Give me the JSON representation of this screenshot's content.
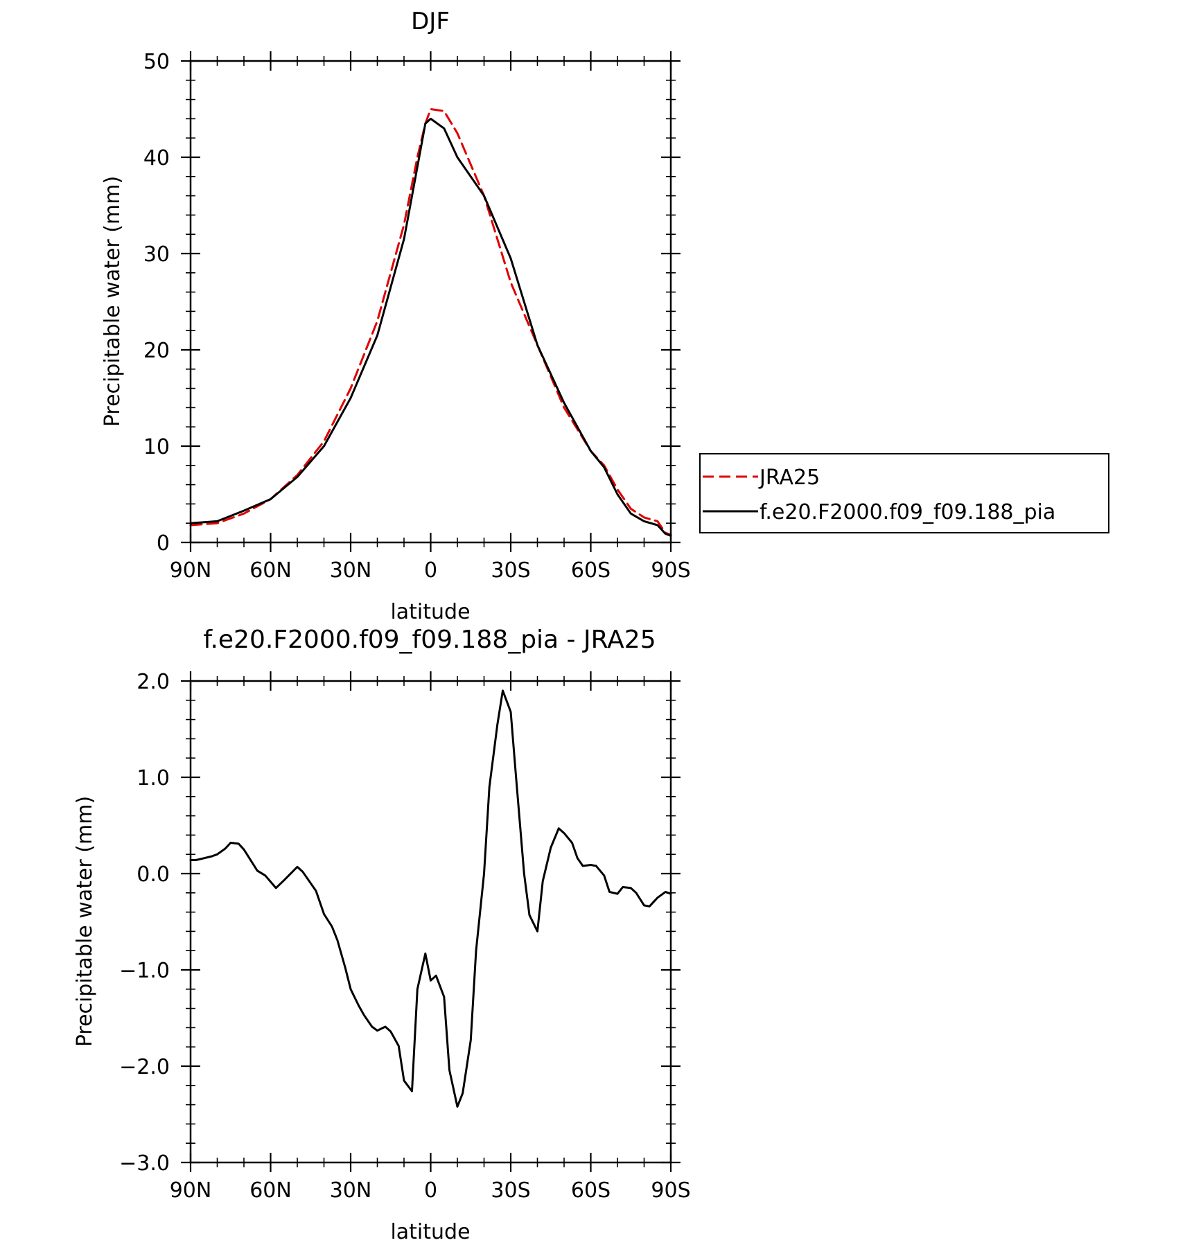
{
  "chart_data": [
    {
      "type": "line",
      "title": "DJF",
      "xlabel": "latitude",
      "ylabel": "Precipitable water (mm)",
      "xlim": [
        90,
        -90
      ],
      "ylim": [
        0,
        50
      ],
      "xticks": [
        90,
        60,
        30,
        0,
        -30,
        -60,
        -90
      ],
      "xtick_labels": [
        "90N",
        "60N",
        "30N",
        "0",
        "30S",
        "60S",
        "90S"
      ],
      "yticks": [
        0,
        10,
        20,
        30,
        40,
        50
      ],
      "ytick_labels": [
        "0",
        "10",
        "20",
        "30",
        "40",
        "50"
      ],
      "legend_position": "right",
      "series": [
        {
          "name": "JRA25",
          "color": "#e00000",
          "dash": "dashed",
          "x": [
            90,
            80,
            70,
            60,
            50,
            40,
            30,
            20,
            10,
            5,
            2,
            0,
            -5,
            -10,
            -20,
            -30,
            -40,
            -50,
            -60,
            -65,
            -70,
            -75,
            -80,
            -85,
            -88,
            -90
          ],
          "y": [
            1.8,
            2.0,
            3.0,
            4.5,
            7.0,
            10.5,
            16.0,
            23.0,
            33.0,
            40.0,
            43.5,
            45.0,
            44.8,
            42.5,
            36.0,
            27.0,
            20.5,
            14.0,
            9.5,
            8.0,
            5.5,
            3.5,
            2.6,
            2.2,
            1.0,
            0.8
          ]
        },
        {
          "name": "f.e20.F2000.f09_f09.188_pia",
          "color": "#000000",
          "dash": "solid",
          "x": [
            90,
            80,
            70,
            60,
            50,
            40,
            30,
            20,
            10,
            5,
            2,
            0,
            -5,
            -10,
            -20,
            -30,
            -40,
            -50,
            -60,
            -65,
            -70,
            -75,
            -80,
            -85,
            -88,
            -90
          ],
          "y": [
            2.0,
            2.2,
            3.3,
            4.5,
            6.8,
            10.0,
            15.0,
            21.5,
            31.5,
            39.0,
            43.5,
            44.0,
            43.0,
            40.0,
            36.0,
            29.5,
            20.5,
            14.5,
            9.5,
            7.8,
            5.0,
            3.0,
            2.2,
            1.8,
            0.9,
            0.7
          ]
        }
      ]
    },
    {
      "type": "line",
      "title": "f.e20.F2000.f09_f09.188_pia - JRA25",
      "xlabel": "latitude",
      "ylabel": "Precipitable water (mm)",
      "xlim": [
        90,
        -90
      ],
      "ylim": [
        -3.0,
        2.0
      ],
      "xticks": [
        90,
        60,
        30,
        0,
        -30,
        -60,
        -90
      ],
      "xtick_labels": [
        "90N",
        "60N",
        "30N",
        "0",
        "30S",
        "60S",
        "90S"
      ],
      "yticks": [
        -3.0,
        -2.0,
        -1.0,
        0.0,
        1.0,
        2.0
      ],
      "ytick_labels": [
        "−3.0",
        "−2.0",
        "−1.0",
        "0.0",
        "1.0",
        "2.0"
      ],
      "series": [
        {
          "color": "#000000",
          "dash": "solid",
          "x": [
            90,
            88,
            85,
            82,
            80,
            77,
            75,
            72,
            70,
            65,
            62,
            58,
            55,
            50,
            48,
            45,
            43,
            40,
            37,
            35,
            32,
            30,
            27,
            25,
            22,
            20,
            17,
            15,
            12,
            10,
            7,
            5,
            2,
            0,
            -2,
            -5,
            -7,
            -10,
            -12,
            -15,
            -17,
            -20,
            -22,
            -25,
            -27,
            -30,
            -32,
            -35,
            -37,
            -40,
            -42,
            -45,
            -48,
            -50,
            -53,
            -55,
            -57,
            -60,
            -62,
            -65,
            -67,
            -70,
            -72,
            -75,
            -77,
            -80,
            -82,
            -85,
            -88,
            -90
          ],
          "y": [
            0.14,
            0.14,
            0.16,
            0.18,
            0.2,
            0.26,
            0.32,
            0.31,
            0.25,
            0.03,
            -0.02,
            -0.15,
            -0.07,
            0.07,
            0.02,
            -0.1,
            -0.18,
            -0.42,
            -0.55,
            -0.69,
            -0.98,
            -1.2,
            -1.37,
            -1.47,
            -1.59,
            -1.63,
            -1.59,
            -1.64,
            -1.79,
            -2.15,
            -2.26,
            -1.2,
            -0.83,
            -1.11,
            -1.06,
            -1.28,
            -2.04,
            -2.42,
            -2.28,
            -1.73,
            -0.8,
            0.0,
            0.9,
            1.55,
            1.9,
            1.68,
            1.0,
            0.0,
            -0.43,
            -0.6,
            -0.08,
            0.27,
            0.47,
            0.42,
            0.32,
            0.16,
            0.08,
            0.09,
            0.08,
            -0.02,
            -0.19,
            -0.21,
            -0.14,
            -0.15,
            -0.2,
            -0.33,
            -0.34,
            -0.25,
            -0.19,
            -0.21
          ]
        }
      ]
    }
  ]
}
